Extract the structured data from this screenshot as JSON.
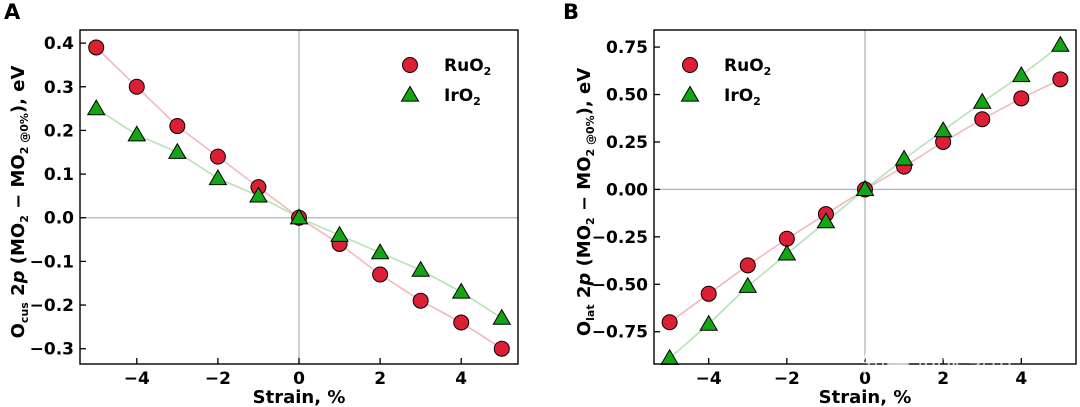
{
  "chart_data": [
    {
      "type": "scatter",
      "panel_label": "A",
      "xlabel": "Strain, %",
      "ylabel": {
        "prefix": "O",
        "prefix_sub": "cus",
        "mid": " 2",
        "italic": "p",
        "paren_open": " (MO",
        "sub1": "2",
        "minus": " − MO",
        "sub2": "2 @0%",
        "suffix": "), eV"
      },
      "xlim": [
        -5.4,
        5.4
      ],
      "ylim": [
        -0.335,
        0.43
      ],
      "xticks": [
        -4,
        -2,
        0,
        2,
        4
      ],
      "xtick_labels": [
        "−4",
        "−2",
        "0",
        "2",
        "4"
      ],
      "yticks": [
        0.4,
        0.3,
        0.2,
        0.1,
        0.0,
        -0.1,
        -0.2,
        -0.3
      ],
      "ytick_labels": [
        "0.4",
        "0.3",
        "0.2",
        "0.1",
        "0.0",
        "−0.1",
        "−0.2",
        "−0.3"
      ],
      "reference_lines": {
        "x": 0,
        "y": 0
      },
      "legend_position": "top-right",
      "series": [
        {
          "name": "RuO",
          "name_sub": "2",
          "marker": "circle",
          "color": "#dd1f35",
          "line_color": "#f3b8bf",
          "x": [
            -5,
            -4,
            -3,
            -2,
            -1,
            0,
            1,
            2,
            3,
            4,
            5
          ],
          "y": [
            0.39,
            0.3,
            0.21,
            0.14,
            0.07,
            0.0,
            -0.06,
            -0.13,
            -0.19,
            -0.24,
            -0.3
          ]
        },
        {
          "name": "IrO",
          "name_sub": "2",
          "marker": "triangle",
          "color": "#14a514",
          "line_color": "#b5e3b3",
          "x": [
            -5,
            -4,
            -3,
            -2,
            -1,
            0,
            1,
            2,
            3,
            4,
            5
          ],
          "y": [
            0.25,
            0.19,
            0.15,
            0.09,
            0.05,
            0.0,
            -0.04,
            -0.08,
            -0.12,
            -0.17,
            -0.23
          ]
        }
      ]
    },
    {
      "type": "scatter",
      "panel_label": "B",
      "xlabel": "Strain, %",
      "ylabel": {
        "prefix": "O",
        "prefix_sub": "lat",
        "mid": " 2",
        "italic": "p",
        "paren_open": " (MO",
        "sub1": "2",
        "minus": " − MO",
        "sub2": "2 @0%",
        "suffix": "), eV"
      },
      "xlim": [
        -5.4,
        5.4
      ],
      "ylim": [
        -0.92,
        0.84
      ],
      "xticks": [
        -4,
        -2,
        0,
        2,
        4
      ],
      "xtick_labels": [
        "−4",
        "−2",
        "0",
        "2",
        "4"
      ],
      "yticks": [
        0.75,
        0.5,
        0.25,
        0.0,
        -0.25,
        -0.5,
        -0.75
      ],
      "ytick_labels": [
        "0.75",
        "0.50",
        "0.25",
        "0.00",
        "−0.25",
        "−0.50",
        "−0.75"
      ],
      "reference_lines": {
        "x": 0,
        "y": 0
      },
      "legend_position": "top-left",
      "series": [
        {
          "name": "RuO",
          "name_sub": "2",
          "marker": "circle",
          "color": "#dd1f35",
          "line_color": "#f3b8bf",
          "x": [
            -5,
            -4,
            -3,
            -2,
            -1,
            0,
            1,
            2,
            3,
            4,
            5
          ],
          "y": [
            -0.7,
            -0.55,
            -0.4,
            -0.26,
            -0.13,
            0.0,
            0.12,
            0.25,
            0.37,
            0.48,
            0.58
          ]
        },
        {
          "name": "IrO",
          "name_sub": "2",
          "marker": "triangle",
          "color": "#14a514",
          "line_color": "#b5e3b3",
          "x": [
            -5,
            -4,
            -3,
            -2,
            -1,
            0,
            1,
            2,
            3,
            4,
            5
          ],
          "y": [
            -0.89,
            -0.71,
            -0.51,
            -0.34,
            -0.17,
            0.0,
            0.16,
            0.31,
            0.46,
            0.6,
            0.76
          ]
        }
      ]
    }
  ],
  "watermark": "知乎 @水氢电"
}
